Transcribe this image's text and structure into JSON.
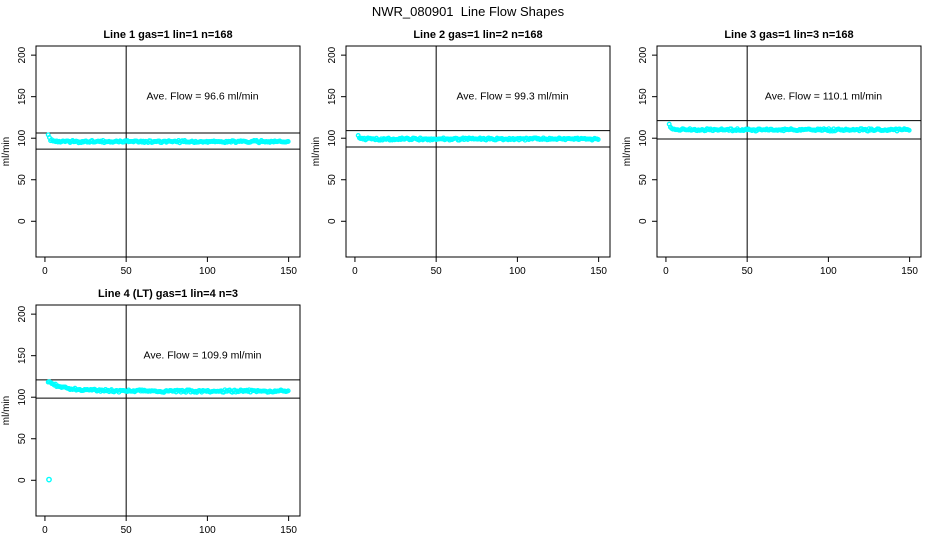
{
  "window_title": "NWR_080901  Line Flow Shapes",
  "colors": {
    "background": "#ffffff",
    "data_point": "#00ffff",
    "axis": "#000000",
    "text": "#000000"
  },
  "chart_data": [
    {
      "type": "scatter",
      "title": "Line 1 gas=1 lin=1 n=168",
      "line": "Line 1",
      "gas": 1,
      "lin": 1,
      "n": 168,
      "annotation": "Ave. Flow =  96.6  ml/min",
      "ave_flow_ml_min": 96.6,
      "ylabel": "ml/min",
      "x_ticks": [
        0,
        50,
        100,
        150
      ],
      "y_ticks": [
        0,
        50,
        100,
        150,
        200
      ],
      "x_range": [
        -5.5,
        157
      ],
      "y_range": [
        -43,
        211
      ],
      "grid": false,
      "ref_vline_x": 50,
      "ref_hlines_y": [
        106.3,
        86.9
      ],
      "annotation_at": {
        "x": 97,
        "y": 150
      },
      "series": {
        "name": "flow",
        "x_start": 2,
        "x_end": 150,
        "x_step": 0.75,
        "asymptote": 95.9,
        "start_spike": 8,
        "spike_tau": 1.3,
        "noise_sd": 0.7
      },
      "outliers": []
    },
    {
      "type": "scatter",
      "title": "Line 2 gas=1 lin=2 n=168",
      "line": "Line 2",
      "gas": 1,
      "lin": 2,
      "n": 168,
      "annotation": "Ave. Flow =  99.3  ml/min",
      "ave_flow_ml_min": 99.3,
      "ylabel": "ml/min",
      "x_ticks": [
        0,
        50,
        100,
        150
      ],
      "y_ticks": [
        0,
        50,
        100,
        150,
        200
      ],
      "x_range": [
        -5.5,
        157
      ],
      "y_range": [
        -43,
        211
      ],
      "grid": false,
      "ref_vline_x": 50,
      "ref_hlines_y": [
        109.2,
        89.4
      ],
      "annotation_at": {
        "x": 97,
        "y": 150
      },
      "series": {
        "name": "flow",
        "x_start": 2,
        "x_end": 150,
        "x_step": 0.75,
        "asymptote": 99.0,
        "start_spike": 4.5,
        "spike_tau": 0.9,
        "noise_sd": 0.7
      },
      "outliers": []
    },
    {
      "type": "scatter",
      "title": "Line 3 gas=1 lin=3 n=168",
      "line": "Line 3",
      "gas": 1,
      "lin": 3,
      "n": 168,
      "annotation": "Ave. Flow =  110.1  ml/min",
      "ave_flow_ml_min": 110.1,
      "ylabel": "ml/min",
      "x_ticks": [
        0,
        50,
        100,
        150
      ],
      "y_ticks": [
        0,
        50,
        100,
        150,
        200
      ],
      "x_range": [
        -5.5,
        157
      ],
      "y_range": [
        -43,
        211
      ],
      "grid": false,
      "ref_vline_x": 50,
      "ref_hlines_y": [
        121.1,
        99.1
      ],
      "annotation_at": {
        "x": 97,
        "y": 150
      },
      "series": {
        "name": "flow",
        "x_start": 2,
        "x_end": 150,
        "x_step": 0.75,
        "asymptote": 110.0,
        "start_spike": 7.5,
        "spike_tau": 1.3,
        "noise_sd": 0.7
      },
      "outliers": []
    },
    {
      "type": "scatter",
      "title": "Line 4 (LT) gas=1 lin=4 n=3",
      "line": "Line 4 (LT)",
      "gas": 1,
      "lin": 4,
      "n": 3,
      "annotation": "Ave. Flow =  109.9  ml/min",
      "ave_flow_ml_min": 109.9,
      "ylabel": "ml/min",
      "x_ticks": [
        0,
        50,
        100,
        150
      ],
      "y_ticks": [
        0,
        50,
        100,
        150,
        200
      ],
      "x_range": [
        -5.5,
        157
      ],
      "y_range": [
        -43,
        211
      ],
      "grid": false,
      "ref_vline_x": 50,
      "ref_hlines_y": [
        120.9,
        98.9
      ],
      "annotation_at": {
        "x": 97,
        "y": 150
      },
      "series": {
        "name": "flow",
        "x_start": 2,
        "x_end": 150,
        "x_step": 0.75,
        "asymptote": 107.4,
        "start_spike": 11.3,
        "spike_tau": 11,
        "noise_sd": 0.8
      },
      "outliers": [
        {
          "x": 2.5,
          "y": 0.8
        }
      ]
    }
  ]
}
